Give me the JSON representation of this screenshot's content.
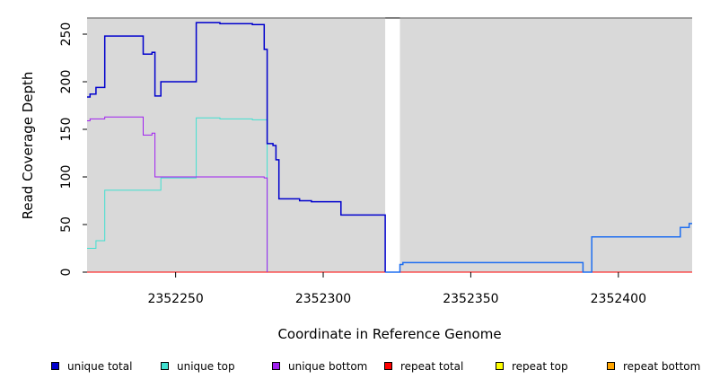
{
  "chart_data": {
    "type": "line",
    "xlabel": "Coordinate in Reference Genome",
    "ylabel": "Read Coverage Depth",
    "xlim": [
      2352220,
      2352425
    ],
    "ylim": [
      0,
      267
    ],
    "x_ticks": [
      2352250,
      2352300,
      2352350,
      2352400
    ],
    "y_ticks": [
      0,
      50,
      100,
      150,
      200,
      250
    ],
    "legend_position": "bottom",
    "gap": [
      2352321,
      2352326
    ],
    "colors": {
      "unique total": "#0000cd",
      "unique top": "#40e0d0",
      "unique bottom": "#a020f0",
      "repeat total": "#ff0000",
      "repeat top": "#ffff00",
      "repeat bottom": "#ffa500",
      "unique total (right)": "#1e6ef0"
    },
    "series": [
      {
        "name": "unique total",
        "color": "#0000cd",
        "step": true,
        "x": [
          2352220,
          2352221,
          2352223,
          2352226,
          2352239,
          2352242,
          2352243,
          2352245,
          2352257,
          2352265,
          2352276,
          2352280,
          2352281,
          2352283,
          2352284,
          2352285,
          2352292,
          2352296,
          2352306,
          2352321,
          2352326,
          2352327,
          2352388,
          2352391,
          2352421,
          2352424,
          2352425
        ],
        "y": [
          184,
          187,
          194,
          248,
          229,
          231,
          185,
          200,
          262,
          261,
          260,
          234,
          135,
          133,
          118,
          77,
          75,
          74,
          60,
          0,
          8,
          10,
          0,
          37,
          47,
          51,
          51
        ]
      },
      {
        "name": "unique top",
        "color": "#40e0d0",
        "step": true,
        "x": [
          2352220,
          2352223,
          2352226,
          2352245,
          2352257,
          2352265,
          2352276,
          2352281
        ],
        "y": [
          25,
          33,
          86,
          99,
          162,
          161,
          160,
          0
        ]
      },
      {
        "name": "unique bottom",
        "color": "#a020f0",
        "step": true,
        "x": [
          2352220,
          2352221,
          2352226,
          2352239,
          2352242,
          2352243,
          2352280,
          2352281
        ],
        "y": [
          159,
          161,
          163,
          144,
          146,
          100,
          99,
          0
        ]
      },
      {
        "name": "repeat total",
        "color": "#ff0000",
        "x": [
          2352220,
          2352425
        ],
        "y": [
          0,
          0
        ]
      },
      {
        "name": "repeat top",
        "color": "#ffff00",
        "x": [
          2352220,
          2352425
        ],
        "y": [
          0,
          0
        ]
      },
      {
        "name": "repeat bottom",
        "color": "#ffa500",
        "x": [
          2352220,
          2352281
        ],
        "y": [
          0,
          0
        ]
      }
    ]
  }
}
